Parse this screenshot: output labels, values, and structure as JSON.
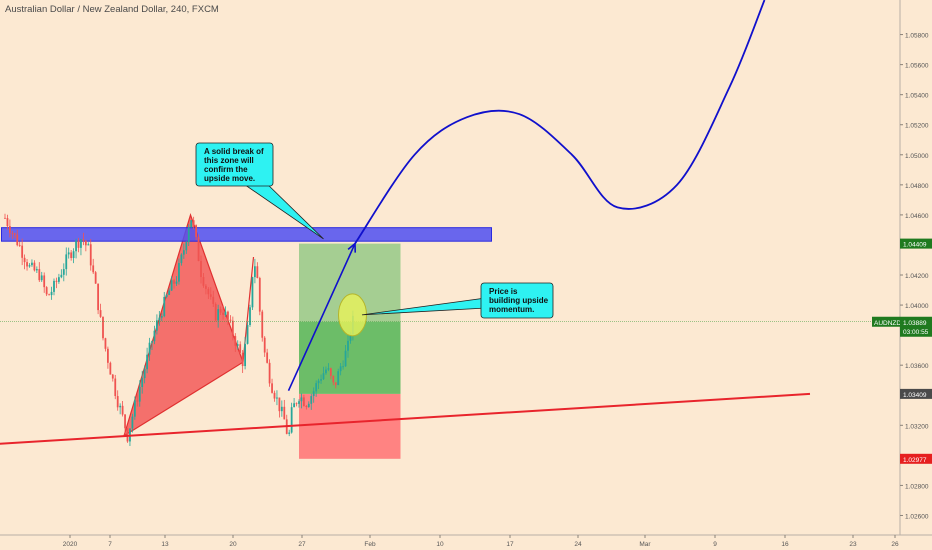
{
  "header": {
    "symbol_title": "Australian Dollar / New Zealand Dollar, 240, FXCM"
  },
  "colors": {
    "background": "#fce9d2",
    "bull_candle": "#26a69a",
    "bear_candle": "#ef5350",
    "zone": "#4f4ff2",
    "trendline": "#e8242c",
    "projection": "#1010cc",
    "harmonic": "#f25a5a",
    "target_box": "#5cb85c",
    "stop_box": "#ff7d7d",
    "callout": "#2ef2f2",
    "last_price_badge": "#1f7a1f",
    "level_badge": "#4a4a4a",
    "stop_badge": "#e61f1f"
  },
  "chart_data": {
    "type": "candlestick",
    "title": "Australian Dollar / New Zealand Dollar, 240, FXCM",
    "xlabel": "",
    "ylabel": "",
    "ylim": [
      1.0247,
      1.0603
    ],
    "grid": false,
    "x_ticks": [
      "2020",
      "7",
      "13",
      "20",
      "27",
      "Feb",
      "10",
      "17",
      "24",
      "Mar",
      "9",
      "16",
      "23",
      "26"
    ],
    "y_ticks": [
      "1.05800",
      "1.05600",
      "1.05400",
      "1.05200",
      "1.05000",
      "1.04800",
      "1.04600",
      "1.04200",
      "1.04000",
      "1.03600",
      "1.03200",
      "1.02800",
      "1.02600"
    ],
    "price_badges": [
      {
        "label": "1.04409",
        "value": 1.04409,
        "role": "level"
      },
      {
        "symbol": "AUDNZD",
        "label": "1.03889",
        "countdown": "03:00:55",
        "value": 1.03889,
        "role": "last"
      },
      {
        "label": "1.03409",
        "value": 1.03409,
        "role": "level"
      },
      {
        "label": "1.02977",
        "value": 1.02977,
        "role": "stop"
      }
    ],
    "close_path": [
      [
        -2,
        1.0458
      ],
      [
        2,
        1.044
      ],
      [
        5,
        1.0425
      ],
      [
        8,
        1.042
      ],
      [
        10,
        1.0405
      ],
      [
        12,
        1.0412
      ],
      [
        14,
        1.0422
      ],
      [
        16,
        1.0432
      ],
      [
        18,
        1.044
      ],
      [
        20,
        1.0445
      ],
      [
        22,
        1.0436
      ],
      [
        24,
        1.041
      ],
      [
        26,
        1.0378
      ],
      [
        28,
        1.0358
      ],
      [
        30,
        1.0338
      ],
      [
        32,
        1.0322
      ],
      [
        33,
        1.0313
      ],
      [
        35,
        1.0332
      ],
      [
        37,
        1.035
      ],
      [
        39,
        1.0368
      ],
      [
        41,
        1.0385
      ],
      [
        43,
        1.0398
      ],
      [
        45,
        1.041
      ],
      [
        47,
        1.0418
      ],
      [
        49,
        1.0436
      ],
      [
        51,
        1.046
      ],
      [
        52,
        1.045
      ],
      [
        54,
        1.0422
      ],
      [
        56,
        1.0408
      ],
      [
        58,
        1.0393
      ],
      [
        60,
        1.0398
      ],
      [
        62,
        1.0388
      ],
      [
        64,
        1.0375
      ],
      [
        66,
        1.0362
      ],
      [
        68,
        1.0395
      ],
      [
        69,
        1.0432
      ],
      [
        70,
        1.042
      ],
      [
        71,
        1.039
      ],
      [
        72,
        1.037
      ],
      [
        74,
        1.0348
      ],
      [
        76,
        1.0335
      ],
      [
        78,
        1.0322
      ],
      [
        79,
        1.031
      ],
      [
        80,
        1.033
      ],
      [
        82,
        1.034
      ],
      [
        84,
        1.0335
      ],
      [
        86,
        1.0342
      ],
      [
        88,
        1.0352
      ],
      [
        90,
        1.0358
      ],
      [
        92,
        1.0345
      ],
      [
        94,
        1.036
      ],
      [
        96,
        1.0372
      ],
      [
        97,
        1.0388
      ],
      [
        98,
        1.0391
      ]
    ],
    "resistance_zone": {
      "from": 1.04425,
      "to": 1.04515,
      "x_start": -3,
      "x_end": 137
    },
    "support_trendline": [
      [
        -5,
        1.03075
      ],
      [
        228,
        1.03409
      ]
    ],
    "harmonic_pattern": [
      [
        32,
        1.0313
      ],
      [
        51,
        1.046
      ],
      [
        66,
        1.0362
      ],
      [
        69,
        1.0432
      ],
      [
        66,
        1.0362
      ],
      [
        32,
        1.0313
      ]
    ],
    "position": {
      "x_start": 82,
      "x_end": 111,
      "entry": 1.03889,
      "target": 1.04409,
      "stop_level": 1.03409,
      "stop_bottom": 1.02977
    },
    "projection_arrow": [
      [
        79,
        1.0343
      ],
      [
        98,
        1.04409
      ]
    ],
    "projection_path": [
      [
        98,
        1.04409
      ],
      [
        115,
        1.05
      ],
      [
        130,
        1.0525
      ],
      [
        145,
        1.0527
      ],
      [
        160,
        1.05
      ],
      [
        173,
        1.0465
      ],
      [
        190,
        1.048
      ],
      [
        205,
        1.0545
      ],
      [
        215,
        1.0603
      ]
    ],
    "circle_point": [
      97,
      1.03935
    ],
    "annotations": [
      {
        "text": "A solid break of this zone will confirm the upside move.",
        "anchor": [
          89,
          1.0444
        ]
      },
      {
        "text": "Price is building upside momentum.",
        "anchor": [
          100,
          1.03935
        ]
      }
    ]
  }
}
